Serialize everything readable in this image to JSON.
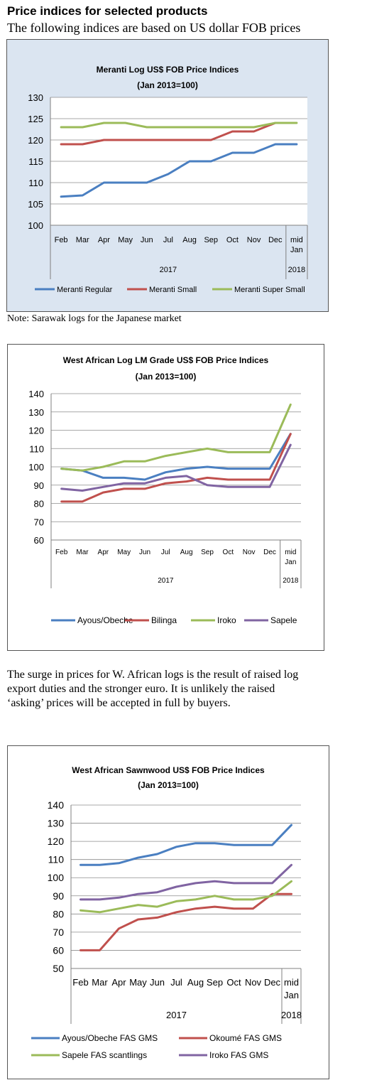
{
  "heading": "Price indices for selected products",
  "subheading": "The following indices are based on US dollar FOB prices",
  "note": "Note: Sarawak logs for the Japanese market",
  "paragraph": [
    "The surge in prices for W. African logs is the result of raised log",
    "export duties and the stronger euro. It is unlikely the raised",
    "‘asking’ prices will be accepted in full by buyers."
  ],
  "chart_data": [
    {
      "type": "line",
      "title": "Meranti Log US$ FOB Price Indices",
      "subtitle": "(Jan 2013=100)",
      "categories": [
        "Feb",
        "Mar",
        "Apr",
        "May",
        "Jun",
        "Jul",
        "Aug",
        "Sep",
        "Oct",
        "Nov",
        "Dec",
        "mid Jan"
      ],
      "year_labels": [
        "2017",
        "2018"
      ],
      "ylim": [
        100,
        130
      ],
      "yticks": [
        100,
        105,
        110,
        115,
        120,
        125,
        130
      ],
      "series": [
        {
          "name": "Meranti Regular",
          "color": "#4a7fc1",
          "values": [
            106.7,
            107,
            110,
            110,
            110,
            112,
            115,
            115,
            117,
            117,
            119,
            119
          ]
        },
        {
          "name": "Meranti Small",
          "color": "#c0504d",
          "values": [
            119,
            119,
            120,
            120,
            120,
            120,
            120,
            120,
            122,
            122,
            124,
            null
          ]
        },
        {
          "name": "Meranti Super Small",
          "color": "#9bbb59",
          "values": [
            123,
            123,
            124,
            124,
            123,
            123,
            123,
            123,
            123,
            123,
            124,
            124
          ]
        }
      ]
    },
    {
      "type": "line",
      "title": "West African Log LM Grade US$ FOB Price Indices",
      "subtitle": "(Jan 2013=100)",
      "categories": [
        "Feb",
        "Mar",
        "Apr",
        "May",
        "Jun",
        "Jul",
        "Aug",
        "Sep",
        "Oct",
        "Nov",
        "Dec",
        "mid Jan"
      ],
      "year_labels": [
        "2017",
        "2018"
      ],
      "ylim": [
        60,
        140
      ],
      "yticks": [
        60,
        70,
        80,
        90,
        100,
        110,
        120,
        130,
        140
      ],
      "series": [
        {
          "name": "Ayous/Obeche",
          "color": "#4a7fc1",
          "values": [
            99,
            98,
            94,
            94,
            93,
            97,
            99,
            100,
            99,
            99,
            99,
            118
          ]
        },
        {
          "name": "Bilinga",
          "color": "#c0504d",
          "values": [
            81,
            81,
            86,
            88,
            88,
            91,
            92,
            94,
            93,
            93,
            93,
            118
          ]
        },
        {
          "name": "Iroko",
          "color": "#9bbb59",
          "values": [
            99,
            98,
            100,
            103,
            103,
            106,
            108,
            110,
            108,
            108,
            108,
            134
          ]
        },
        {
          "name": "Sapele",
          "color": "#8064a2",
          "values": [
            88,
            87,
            89,
            91,
            91,
            94,
            95,
            90,
            89,
            89,
            89,
            112
          ]
        }
      ]
    },
    {
      "type": "line",
      "title": "West African Sawnwood US$ FOB Price Indices",
      "subtitle": "(Jan 2013=100)",
      "categories": [
        "Feb",
        "Mar",
        "Apr",
        "May",
        "Jun",
        "Jul",
        "Aug",
        "Sep",
        "Oct",
        "Nov",
        "Dec",
        "mid Jan"
      ],
      "year_labels": [
        "2017",
        "2018"
      ],
      "ylim": [
        50,
        140
      ],
      "yticks": [
        50,
        60,
        70,
        80,
        90,
        100,
        110,
        120,
        130,
        140
      ],
      "series": [
        {
          "name": "Ayous/Obeche  FAS GMS",
          "color": "#4a7fc1",
          "values": [
            107,
            107,
            108,
            111,
            113,
            117,
            119,
            119,
            118,
            118,
            118,
            129
          ]
        },
        {
          "name": "Okoumé  FAS GMS",
          "color": "#c0504d",
          "values": [
            60,
            60,
            72,
            77,
            78,
            81,
            83,
            84,
            83,
            83,
            91,
            91
          ]
        },
        {
          "name": "Sapele FAS scantlings",
          "color": "#9bbb59",
          "values": [
            82,
            81,
            83,
            85,
            84,
            87,
            88,
            90,
            88,
            88,
            90,
            98
          ]
        },
        {
          "name": "Iroko FAS GMS",
          "color": "#8064a2",
          "values": [
            88,
            88,
            89,
            91,
            92,
            95,
            97,
            98,
            97,
            97,
            97,
            107
          ]
        }
      ]
    }
  ]
}
